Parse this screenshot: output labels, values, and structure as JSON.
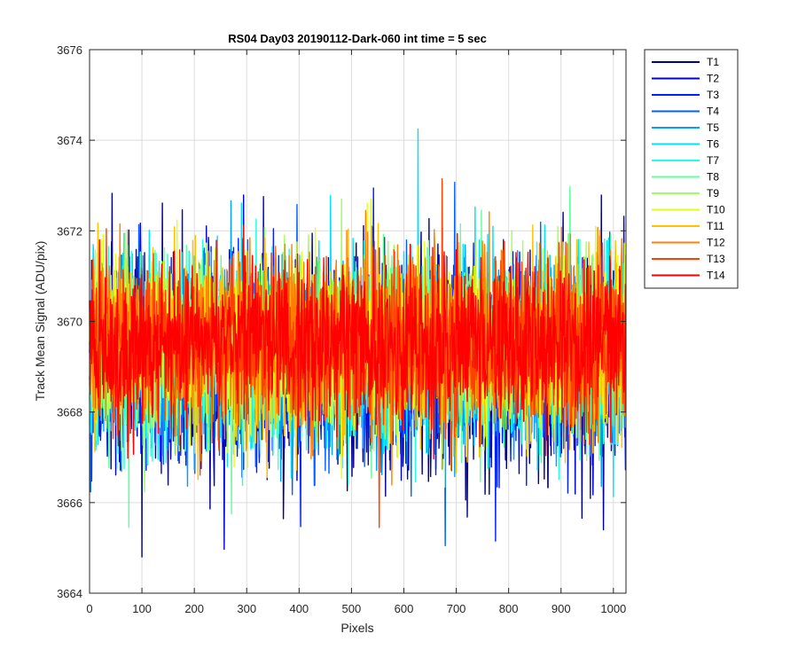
{
  "chart_data": {
    "type": "line",
    "title": "RS04 Day03 20190112-Dark-060 int time = 5 sec",
    "xlabel": "Pixels",
    "ylabel": "Track Mean Signal (ADU/pix)",
    "xlim": [
      0,
      1024
    ],
    "ylim": [
      3664,
      3676
    ],
    "xticks": [
      0,
      100,
      200,
      300,
      400,
      500,
      600,
      700,
      800,
      900,
      1000
    ],
    "yticks": [
      3664,
      3666,
      3668,
      3670,
      3672,
      3674,
      3676
    ],
    "grid": true,
    "legend_position": "outside-top-right",
    "x_count": 1024,
    "series": [
      {
        "name": "T1",
        "color": "#00008f",
        "mean": 3669.0,
        "spread": 1.45
      },
      {
        "name": "T2",
        "color": "#0000d0",
        "mean": 3669.05,
        "spread": 1.4
      },
      {
        "name": "T3",
        "color": "#0020ff",
        "mean": 3669.1,
        "spread": 1.4
      },
      {
        "name": "T4",
        "color": "#0060ff",
        "mean": 3669.15,
        "spread": 1.35
      },
      {
        "name": "T5",
        "color": "#00a0ff",
        "mean": 3669.2,
        "spread": 1.35
      },
      {
        "name": "T6",
        "color": "#00e0ff",
        "mean": 3669.3,
        "spread": 1.35
      },
      {
        "name": "T7",
        "color": "#20ffdf",
        "mean": 3669.35,
        "spread": 1.3
      },
      {
        "name": "T8",
        "color": "#60ff9f",
        "mean": 3669.4,
        "spread": 1.3
      },
      {
        "name": "T9",
        "color": "#a0ff60",
        "mean": 3669.5,
        "spread": 1.3
      },
      {
        "name": "T10",
        "color": "#e0ff20",
        "mean": 3669.5,
        "spread": 1.3
      },
      {
        "name": "T11",
        "color": "#ffc000",
        "mean": 3669.45,
        "spread": 1.3
      },
      {
        "name": "T12",
        "color": "#ff8000",
        "mean": 3669.5,
        "spread": 1.25
      },
      {
        "name": "T13",
        "color": "#ff4000",
        "mean": 3669.5,
        "spread": 1.2
      },
      {
        "name": "T14",
        "color": "#ff0000",
        "mean": 3669.55,
        "spread": 1.2
      }
    ],
    "peaks": [
      {
        "series": "T6",
        "x": 627,
        "y": 3674.25
      },
      {
        "series": "T13",
        "x": 673,
        "y": 3673.15
      },
      {
        "series": "T1",
        "x": 100,
        "y": 3664.8
      },
      {
        "series": "T13",
        "x": 553,
        "y": 3665.45
      }
    ]
  }
}
